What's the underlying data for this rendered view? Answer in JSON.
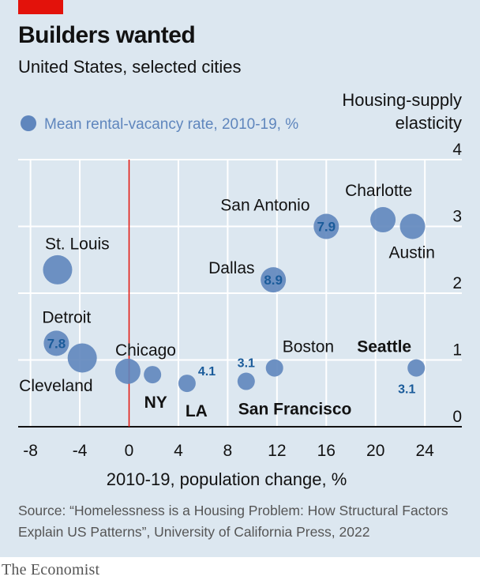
{
  "title": "Builders wanted",
  "subtitle": "United States, selected cities",
  "legend": "Mean rental-vacancy rate, 2010-19, %",
  "source": "Source: “Homelessness is a Housing Problem: How Structural Factors Explain US Patterns”, University of California Press, 2022",
  "brand": "The Economist",
  "colors": {
    "bubble": "#5f86bd",
    "value_label": "#1a5b9a",
    "zero_line": "#e3120b",
    "grid": "#ffffff"
  },
  "chart_data": {
    "type": "scatter",
    "title": "Builders wanted",
    "subtitle": "United States, selected cities",
    "xlabel": "2010-19, population change, %",
    "ylabel_lines": [
      "Housing-supply",
      "elasticity"
    ],
    "xlim": [
      -9,
      27
    ],
    "ylim": [
      0,
      4
    ],
    "xticks": [
      -8,
      -4,
      0,
      4,
      8,
      12,
      16,
      20,
      24
    ],
    "xtick_labels": [
      "-8",
      "-4",
      "0",
      "4",
      "8",
      "12",
      "16",
      "20",
      "24"
    ],
    "yticks": [
      0,
      1,
      2,
      3,
      4
    ],
    "ytick_labels": [
      "0",
      "1",
      "2",
      "3",
      "4"
    ],
    "grid": true,
    "legend_position": "top-left",
    "points": [
      {
        "city": "St. Louis",
        "x": -5.8,
        "y": 2.35,
        "size": "large"
      },
      {
        "city": "Detroit",
        "x": -5.9,
        "y": 1.25,
        "size": "medium",
        "vacancy": "7.8"
      },
      {
        "city": "Cleveland",
        "x": -3.8,
        "y": 1.03,
        "size": "large"
      },
      {
        "city": "Chicago",
        "x": -0.1,
        "y": 0.83,
        "size": "medium"
      },
      {
        "city": "NY",
        "x": 1.9,
        "y": 0.78,
        "size": "small"
      },
      {
        "city": "LA",
        "x": 4.7,
        "y": 0.65,
        "size": "small",
        "vacancy": "4.1"
      },
      {
        "city": "San Francisco",
        "x": 9.5,
        "y": 0.68,
        "size": "small",
        "vacancy": "3.1"
      },
      {
        "city": "Boston",
        "x": 11.8,
        "y": 0.88,
        "size": "small"
      },
      {
        "city": "Dallas",
        "x": 11.7,
        "y": 2.2,
        "size": "medium",
        "vacancy": "8.9"
      },
      {
        "city": "San Antonio",
        "x": 16.0,
        "y": 3.0,
        "size": "medium",
        "vacancy": "7.9"
      },
      {
        "city": "Charlotte",
        "x": 20.6,
        "y": 3.1,
        "size": "medium"
      },
      {
        "city": "Austin",
        "x": 23.0,
        "y": 3.0,
        "size": "medium"
      },
      {
        "city": "Seattle",
        "x": 23.3,
        "y": 0.88,
        "size": "small",
        "vacancy": "3.1"
      }
    ]
  }
}
